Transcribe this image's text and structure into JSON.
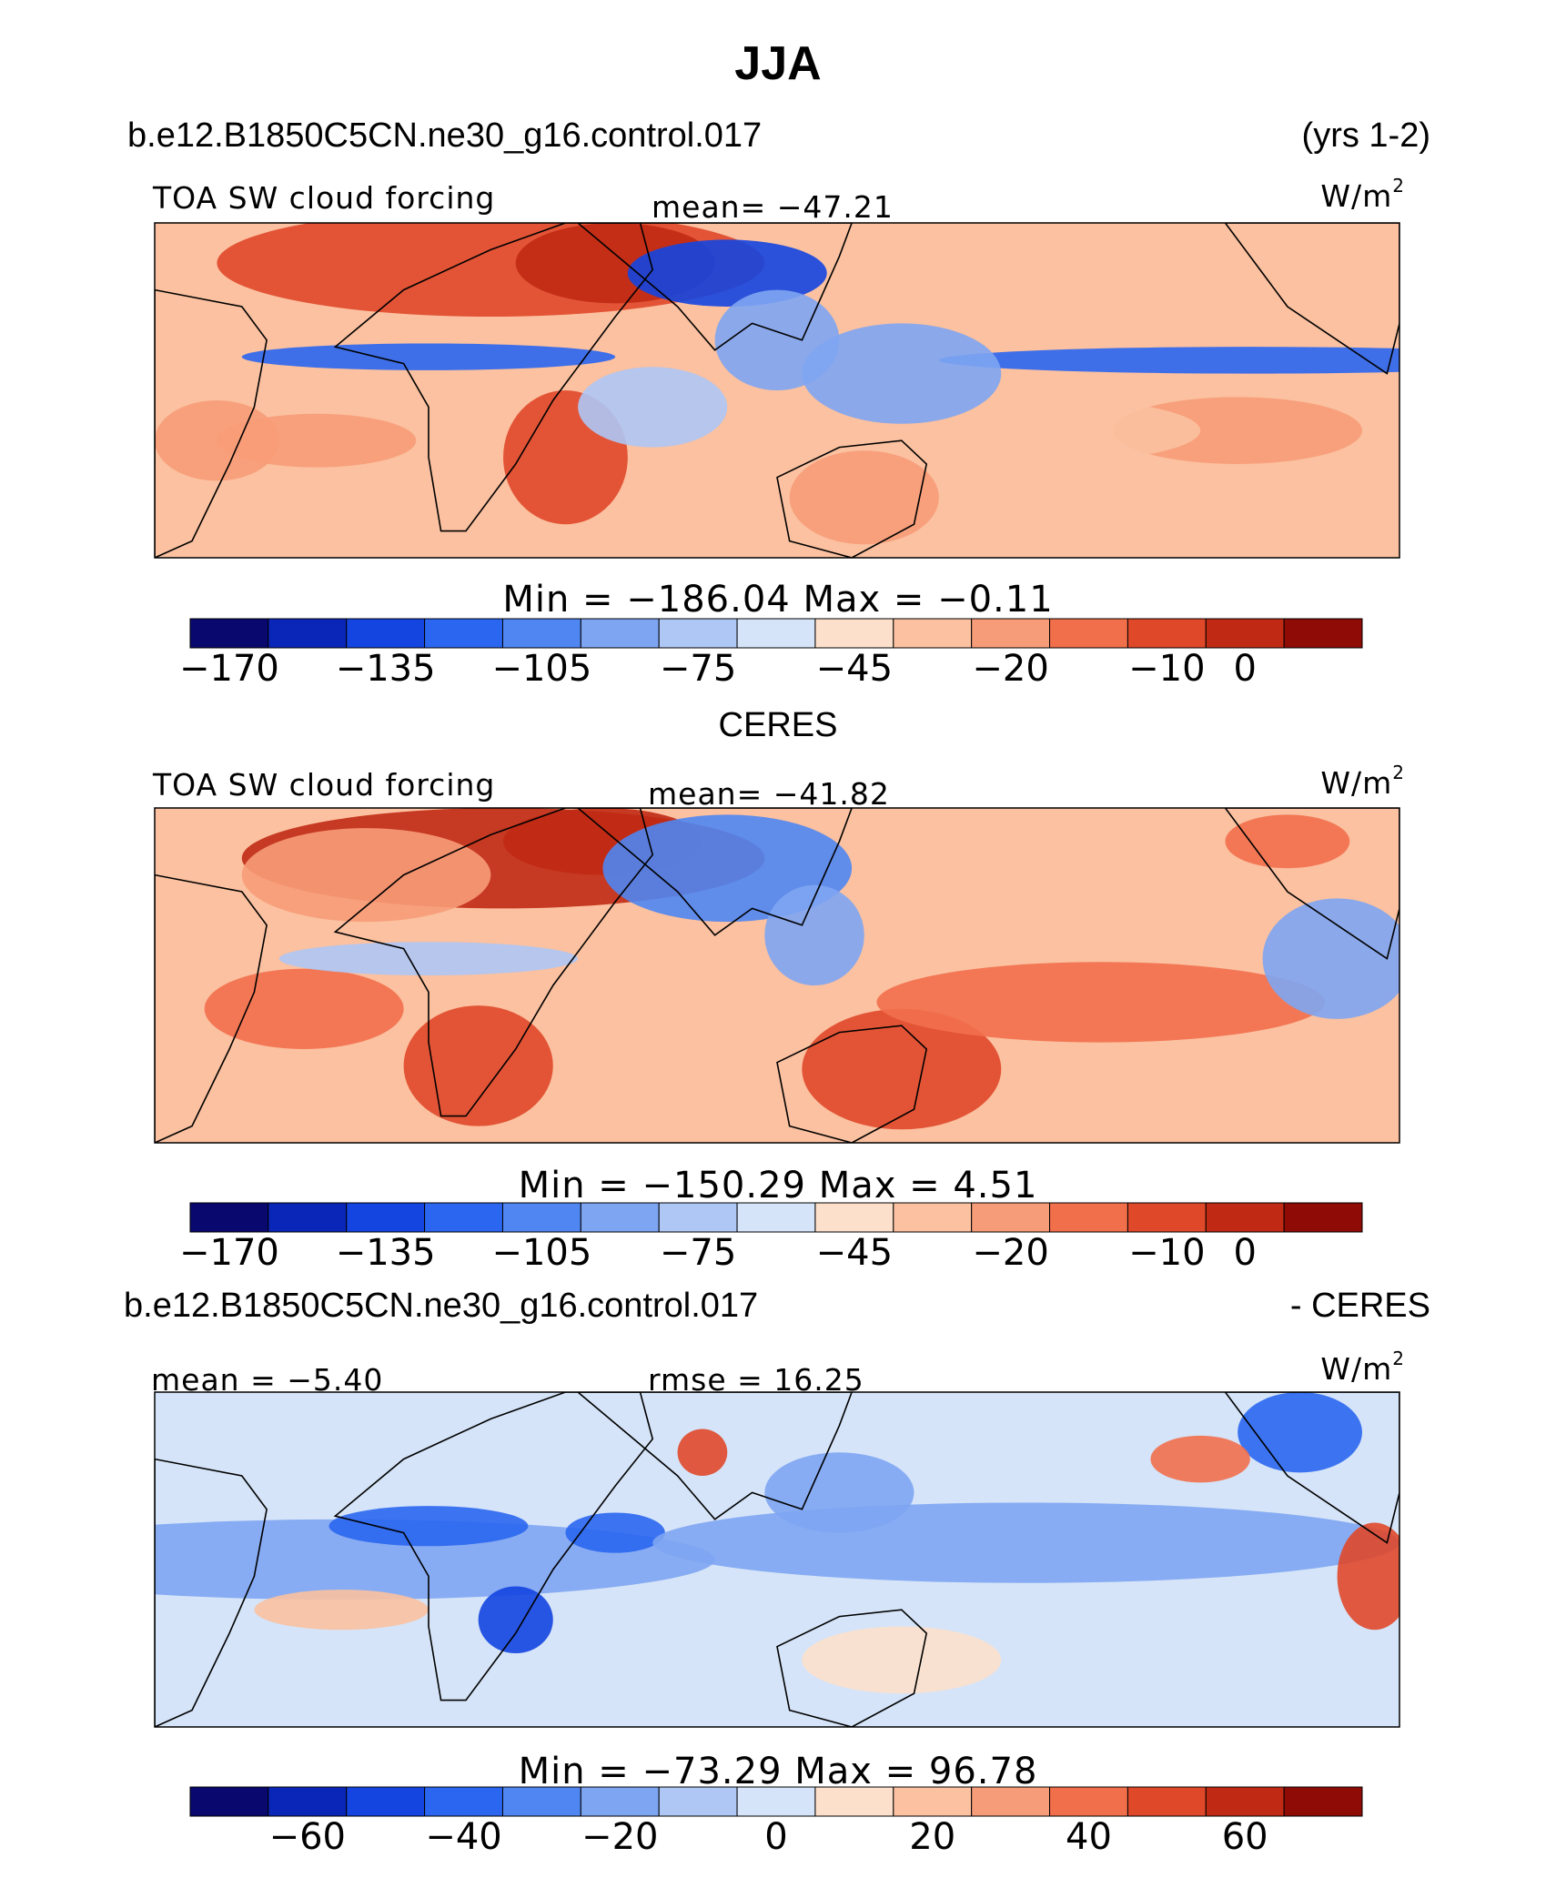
{
  "title": "JJA",
  "panels": [
    {
      "header_left": "b.e12.B1850C5CN.ne30_g16.control.017",
      "header_right": "(yrs 1-2)",
      "variable": "TOA SW cloud forcing",
      "stat": "mean= −47.21",
      "units": "W/m",
      "units_sup": "2",
      "minmax": "Min  =  −186.04  Max  =    −0.11",
      "colorbar_ticks": [
        "−170",
        "−135",
        "−105",
        "−75",
        "−45",
        "−20",
        "−10",
        "0"
      ]
    },
    {
      "header_center": "CERES",
      "variable": "TOA SW cloud forcing",
      "stat": "mean= −41.82",
      "units": "W/m",
      "units_sup": "2",
      "minmax": "Min  =  −150.29  Max  =     4.51",
      "colorbar_ticks": [
        "−170",
        "−135",
        "−105",
        "−75",
        "−45",
        "−20",
        "−10",
        "0"
      ]
    },
    {
      "header_left": "b.e12.B1850C5CN.ne30_g16.control.017",
      "header_right": "- CERES",
      "stat_left": "mean =   −5.40",
      "stat": "rmse =   16.25",
      "units": "W/m",
      "units_sup": "2",
      "minmax": "Min  =  −73.29  Max  =    96.78",
      "colorbar_ticks": [
        "−60",
        "−40",
        "−20",
        "0",
        "20",
        "40",
        "60"
      ]
    }
  ],
  "colors": {
    "palette": [
      "#08086e",
      "#0a26b8",
      "#1445e0",
      "#2a66f0",
      "#4f86f2",
      "#7ea5f2",
      "#aec7f5",
      "#d5e4f8",
      "#fde0cc",
      "#fbc1a0",
      "#f79c78",
      "#f26f4c",
      "#e0482a",
      "#c02a14",
      "#8e0b06"
    ],
    "coastline": "#000000"
  },
  "chart_data": [
    {
      "type": "heatmap",
      "title": "TOA SW cloud forcing",
      "mean": -47.21,
      "min": -186.04,
      "max": -0.11,
      "units": "W/m2",
      "colorbar_levels": [
        -170,
        -150,
        -135,
        -120,
        -105,
        -90,
        -75,
        -60,
        -45,
        -30,
        -20,
        -15,
        -10,
        -5,
        0
      ],
      "colorbar_tick_labels": [
        -170,
        -135,
        -105,
        -75,
        -45,
        -20,
        -10,
        0
      ]
    },
    {
      "type": "heatmap",
      "title": "TOA SW cloud forcing",
      "mean": -41.82,
      "min": -150.29,
      "max": 4.51,
      "units": "W/m2",
      "colorbar_levels": [
        -170,
        -150,
        -135,
        -120,
        -105,
        -90,
        -75,
        -60,
        -45,
        -30,
        -20,
        -15,
        -10,
        -5,
        0
      ],
      "colorbar_tick_labels": [
        -170,
        -135,
        -105,
        -75,
        -45,
        -20,
        -10,
        0
      ]
    },
    {
      "type": "heatmap",
      "mean": -5.4,
      "rmse": 16.25,
      "min": -73.29,
      "max": 96.78,
      "units": "W/m2",
      "colorbar_levels": [
        -70,
        -60,
        -50,
        -40,
        -30,
        -20,
        -10,
        0,
        10,
        20,
        30,
        40,
        50,
        60,
        70
      ],
      "colorbar_tick_labels": [
        -60,
        -40,
        -20,
        0,
        20,
        40,
        60
      ]
    }
  ]
}
